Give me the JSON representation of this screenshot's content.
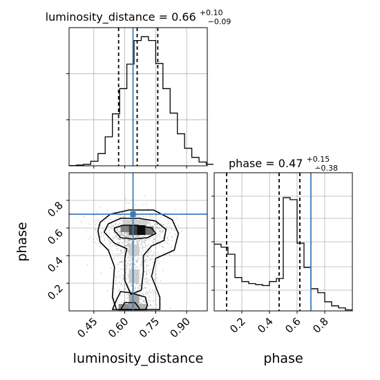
{
  "chart_data": [
    {
      "type": "histogram",
      "panel": "luminosity_distance marginal",
      "title": {
        "prefix": "luminosity_distance = 0.66",
        "sup": "+0.10",
        "sub": "−0.09"
      },
      "xlim": [
        0.33,
        1.0
      ],
      "bins": {
        "start": 0.33,
        "width": 0.035,
        "counts": [
          0.3,
          1,
          2,
          6,
          16,
          38,
          68,
          101,
          133,
          164,
          169,
          164,
          134,
          101,
          69,
          42,
          23,
          11,
          5,
          2
        ]
      },
      "quantile_lines": [
        0.57,
        0.66,
        0.76
      ],
      "truth": 0.64,
      "grid": true
    },
    {
      "type": "histogram",
      "panel": "phase marginal",
      "title": {
        "prefix": "phase = 0.47",
        "sup": "+0.15",
        "sub": "∸0.38"
      },
      "xlim": [
        0.0,
        1.0
      ],
      "xticks": [
        "0.2",
        "0.4",
        "0.6",
        "0.8"
      ],
      "bins": {
        "start": 0.0,
        "width": 0.05,
        "counts": [
          66,
          63,
          56,
          33,
          29,
          27,
          26,
          25,
          29,
          32,
          112,
          110,
          67,
          43,
          22,
          18,
          9,
          5,
          3,
          1
        ]
      },
      "quantile_lines": [
        0.09,
        0.47,
        0.62
      ],
      "truth": 0.7,
      "grid": true
    },
    {
      "type": "scatter",
      "panel": "2d luminosity_distance vs phase",
      "xlabel": "luminosity_distance",
      "ylabel": "phase",
      "xlim": [
        0.33,
        1.0
      ],
      "ylim": [
        0.0,
        1.0
      ],
      "xticks": [
        "0.45",
        "0.60",
        "0.75",
        "0.90"
      ],
      "yticks": [
        "0.2",
        "0.4",
        "0.6",
        "0.8"
      ],
      "truth": {
        "x": 0.64,
        "y": 0.7
      },
      "contours": [
        {
          "level": "inner",
          "points": [
            [
              0.55,
              0.58
            ],
            [
              0.58,
              0.53
            ],
            [
              0.64,
              0.52
            ],
            [
              0.71,
              0.53
            ],
            [
              0.75,
              0.56
            ],
            [
              0.73,
              0.6
            ],
            [
              0.66,
              0.62
            ],
            [
              0.59,
              0.62
            ],
            [
              0.55,
              0.6
            ]
          ]
        },
        {
          "level": "mid",
          "points": [
            [
              0.5,
              0.57
            ],
            [
              0.55,
              0.49
            ],
            [
              0.61,
              0.45
            ],
            [
              0.6,
              0.38
            ],
            [
              0.6,
              0.22
            ],
            [
              0.63,
              0.12
            ],
            [
              0.68,
              0.15
            ],
            [
              0.69,
              0.28
            ],
            [
              0.69,
              0.4
            ],
            [
              0.73,
              0.47
            ],
            [
              0.79,
              0.51
            ],
            [
              0.8,
              0.59
            ],
            [
              0.75,
              0.65
            ],
            [
              0.67,
              0.67
            ],
            [
              0.58,
              0.67
            ],
            [
              0.52,
              0.63
            ]
          ]
        },
        {
          "level": "outer",
          "points": [
            [
              0.47,
              0.58
            ],
            [
              0.48,
              0.5
            ],
            [
              0.52,
              0.44
            ],
            [
              0.55,
              0.32
            ],
            [
              0.54,
              0.1
            ],
            [
              0.56,
              0.01
            ],
            [
              0.77,
              0.01
            ],
            [
              0.77,
              0.1
            ],
            [
              0.73,
              0.25
            ],
            [
              0.75,
              0.38
            ],
            [
              0.84,
              0.44
            ],
            [
              0.86,
              0.56
            ],
            [
              0.83,
              0.66
            ],
            [
              0.74,
              0.73
            ],
            [
              0.62,
              0.73
            ],
            [
              0.53,
              0.7
            ],
            [
              0.48,
              0.64
            ]
          ]
        },
        {
          "level": "lower-left",
          "points": [
            [
              0.54,
              0.01
            ],
            [
              0.56,
              0.08
            ],
            [
              0.58,
              0.14
            ],
            [
              0.63,
              0.13
            ],
            [
              0.7,
              0.1
            ],
            [
              0.71,
              0.04
            ],
            [
              0.7,
              0.01
            ]
          ]
        },
        {
          "level": "lower-inner",
          "points": [
            [
              0.58,
              0.01
            ],
            [
              0.6,
              0.06
            ],
            [
              0.65,
              0.06
            ],
            [
              0.67,
              0.02
            ],
            [
              0.67,
              0.01
            ]
          ]
        }
      ],
      "hist2d_cells": [
        {
          "x": 0.58,
          "y": 0.57,
          "w": 0.04,
          "h": 0.05,
          "shade": 0.5
        },
        {
          "x": 0.62,
          "y": 0.55,
          "w": 0.04,
          "h": 0.07,
          "shade": 0.25
        },
        {
          "x": 0.66,
          "y": 0.55,
          "w": 0.04,
          "h": 0.07,
          "shade": 0.05
        },
        {
          "x": 0.7,
          "y": 0.55,
          "w": 0.04,
          "h": 0.06,
          "shade": 0.45
        },
        {
          "x": 0.62,
          "y": 0.4,
          "w": 0.05,
          "h": 0.08,
          "shade": 0.8
        },
        {
          "x": 0.62,
          "y": 0.2,
          "w": 0.05,
          "h": 0.1,
          "shade": 0.8
        },
        {
          "x": 0.62,
          "y": 0.05,
          "w": 0.05,
          "h": 0.07,
          "shade": 0.65
        },
        {
          "x": 0.57,
          "y": 0.0,
          "w": 0.05,
          "h": 0.05,
          "shade": 0.55
        },
        {
          "x": 0.62,
          "y": 0.0,
          "w": 0.05,
          "h": 0.05,
          "shade": 0.6
        },
        {
          "x": 0.66,
          "y": 0.0,
          "w": 0.05,
          "h": 0.05,
          "shade": 0.7
        },
        {
          "x": 0.59,
          "y": 0.62,
          "w": 0.12,
          "h": 0.04,
          "shade": 0.82
        }
      ]
    }
  ]
}
